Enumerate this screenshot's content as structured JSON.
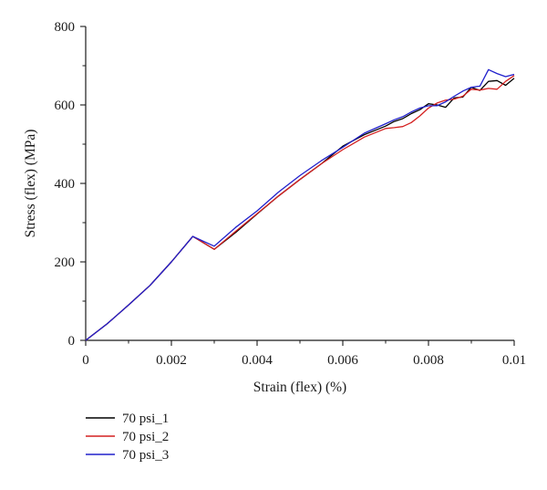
{
  "chart_data": {
    "type": "line",
    "title": "",
    "xlabel": "Strain (flex) (%)",
    "ylabel": "Stress (flex) (MPa)",
    "xlim": [
      0,
      0.01
    ],
    "ylim": [
      0,
      800
    ],
    "x_ticks": [
      0,
      0.002,
      0.004,
      0.006,
      0.008,
      0.01
    ],
    "x_tick_labels": [
      "0",
      "0.002",
      "0.004",
      "0.006",
      "0.008",
      "0.01"
    ],
    "y_ticks": [
      0,
      200,
      400,
      600,
      800
    ],
    "y_tick_labels": [
      "0",
      "200",
      "400",
      "600",
      "800"
    ],
    "grid": false,
    "legend_position": "below-left",
    "series": [
      {
        "name": "70 psi_1",
        "color": "#000000",
        "x": [
          0,
          0.0005,
          0.001,
          0.0015,
          0.002,
          0.0025,
          0.003,
          0.0035,
          0.004,
          0.0045,
          0.005,
          0.0055,
          0.006,
          0.0065,
          0.007,
          0.0072,
          0.0074,
          0.0076,
          0.0078,
          0.008,
          0.0082,
          0.0084,
          0.0086,
          0.0088,
          0.009,
          0.0092,
          0.0094,
          0.0096,
          0.0098,
          0.01
        ],
        "y": [
          0,
          42,
          90,
          140,
          200,
          265,
          232,
          275,
          322,
          368,
          410,
          450,
          495,
          524,
          546,
          558,
          565,
          578,
          588,
          603,
          600,
          594,
          618,
          620,
          645,
          637,
          660,
          662,
          650,
          668
        ]
      },
      {
        "name": "70 psi_2",
        "color": "#d42020",
        "x": [
          0,
          0.0005,
          0.001,
          0.0015,
          0.002,
          0.0025,
          0.003,
          0.0035,
          0.004,
          0.0045,
          0.005,
          0.0055,
          0.006,
          0.0065,
          0.007,
          0.0072,
          0.0074,
          0.0076,
          0.0078,
          0.008,
          0.0082,
          0.0084,
          0.0086,
          0.0088,
          0.009,
          0.0092,
          0.0094,
          0.0096,
          0.0098,
          0.01
        ],
        "y": [
          0,
          42,
          90,
          140,
          200,
          265,
          232,
          278,
          323,
          368,
          410,
          450,
          486,
          518,
          540,
          542,
          545,
          555,
          572,
          592,
          605,
          612,
          615,
          622,
          640,
          638,
          642,
          640,
          660,
          675
        ]
      },
      {
        "name": "70 psi_3",
        "color": "#2020cc",
        "x": [
          0,
          0.0005,
          0.001,
          0.0015,
          0.002,
          0.0025,
          0.003,
          0.0035,
          0.004,
          0.0045,
          0.005,
          0.0055,
          0.006,
          0.0065,
          0.007,
          0.0072,
          0.0074,
          0.0076,
          0.0078,
          0.008,
          0.0082,
          0.0084,
          0.0086,
          0.0088,
          0.009,
          0.0092,
          0.0094,
          0.0096,
          0.0098,
          0.01
        ],
        "y": [
          0,
          42,
          90,
          140,
          200,
          265,
          240,
          288,
          330,
          378,
          420,
          458,
          492,
          528,
          552,
          562,
          570,
          582,
          592,
          598,
          598,
          608,
          622,
          635,
          645,
          648,
          690,
          680,
          672,
          678
        ]
      }
    ]
  }
}
